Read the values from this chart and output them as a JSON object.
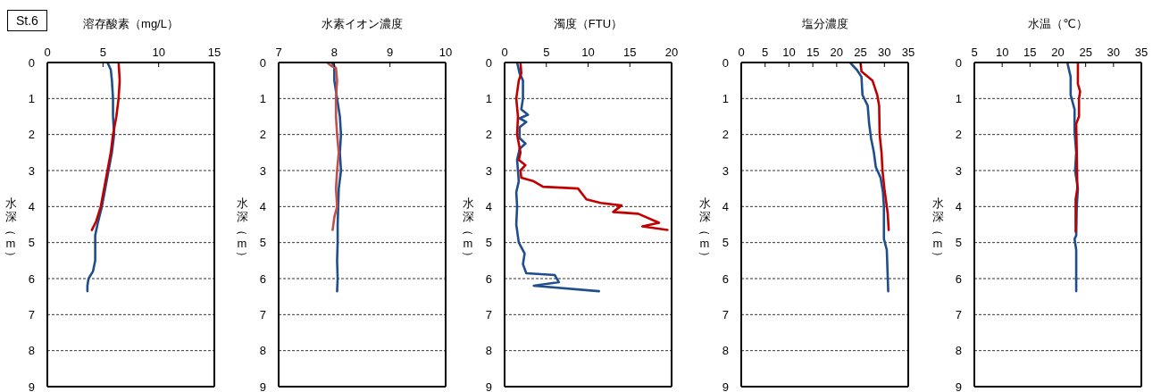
{
  "chart_data": [
    {
      "type": "line",
      "xlabel": "溶存酸素（mg/L）",
      "ylabel": "水深（m）",
      "annotations": [
        "St.6"
      ],
      "xlim": [
        0,
        15
      ],
      "xticks": [
        0,
        5,
        10,
        15
      ],
      "ylim": [
        9,
        0
      ],
      "yticks": [
        0,
        1,
        2,
        3,
        4,
        5,
        6,
        7,
        8,
        9
      ],
      "grid": "y",
      "series": [
        {
          "color": "#1f4e8c",
          "x": [
            5.4,
            5.7,
            5.8,
            5.9,
            5.9,
            6.0,
            5.8,
            5.5,
            5.2,
            4.9,
            4.5,
            4.3,
            4.3,
            4.1,
            3.7,
            3.6,
            3.6
          ],
          "values": [
            0,
            0.2,
            0.5,
            1,
            1.5,
            2,
            2.5,
            3,
            3.5,
            4,
            4.5,
            4.8,
            5.5,
            5.8,
            6,
            6.2,
            6.35
          ]
        },
        {
          "color": "#c00000",
          "x": [
            6.4,
            6.5,
            6.4,
            6.2,
            5.9,
            5.7,
            5.4,
            5.1,
            4.8,
            4.4,
            4.0
          ],
          "values": [
            0,
            0.5,
            1,
            1.5,
            2,
            2.5,
            3,
            3.5,
            4,
            4.4,
            4.65
          ]
        }
      ]
    },
    {
      "type": "line",
      "xlabel": "水素イオン濃度",
      "ylabel": "水深（m）",
      "xlim": [
        7,
        10
      ],
      "xticks": [
        7,
        8,
        9,
        10
      ],
      "ylim": [
        9,
        0
      ],
      "yticks": [
        0,
        1,
        2,
        3,
        4,
        5,
        6,
        7,
        8,
        9
      ],
      "grid": "y",
      "series": [
        {
          "color": "#1f4e8c",
          "x": [
            7.95,
            8.0,
            8.0,
            8.05,
            8.1,
            8.12,
            8.1,
            8.12,
            8.08,
            8.07,
            8.06,
            8.06,
            8.05,
            8.06,
            8.05
          ],
          "values": [
            0,
            0.1,
            0.5,
            1,
            1.5,
            2,
            2.5,
            3,
            3.5,
            4,
            4.5,
            5,
            5.5,
            6,
            6.35
          ]
        },
        {
          "color": "#c0504d",
          "x": [
            7.87,
            7.95,
            8.03,
            8.05,
            8.03,
            8.03,
            8.05,
            8.08,
            8.05,
            8.03,
            8.05,
            8.0,
            7.97
          ],
          "values": [
            0,
            0.1,
            0.15,
            0.5,
            1,
            1.5,
            2,
            2.5,
            3,
            3.5,
            4,
            4.3,
            4.65
          ]
        }
      ]
    },
    {
      "type": "line",
      "xlabel": "濁度（FTU）",
      "ylabel": "水深（m）",
      "xlim": [
        0,
        20
      ],
      "xticks": [
        0,
        5,
        10,
        15,
        20
      ],
      "ylim": [
        9,
        0
      ],
      "yticks": [
        0,
        1,
        2,
        3,
        4,
        5,
        6,
        7,
        8,
        9
      ],
      "grid": "y",
      "series": [
        {
          "color": "#1f4e8c",
          "x": [
            1.5,
            1.8,
            2.2,
            2.2,
            2.0,
            2.8,
            1.8,
            2.6,
            1.8,
            1.8,
            2.5,
            1.8,
            1.5,
            1.6,
            1.7,
            1.4,
            1.5,
            1.4,
            1.7,
            2.4,
            2.2,
            2.6,
            6.0,
            6.5,
            3.5,
            11.3
          ],
          "values": [
            0,
            0.3,
            0.5,
            1,
            1.3,
            1.45,
            1.55,
            1.65,
            1.8,
            2.1,
            2.25,
            2.4,
            2.7,
            3,
            3.3,
            3.6,
            4,
            4.5,
            5,
            5.3,
            5.6,
            5.85,
            5.9,
            6.1,
            6.2,
            6.35
          ]
        },
        {
          "color": "#c00000",
          "x": [
            1.9,
            2.0,
            1.7,
            1.4,
            1.6,
            1.5,
            1.9,
            1.7,
            2.5,
            1.9,
            2.0,
            3.5,
            4.6,
            8.8,
            9.8,
            11.5,
            14.0,
            13.0,
            16.0,
            18.5,
            16.5,
            19.5
          ],
          "values": [
            0,
            0.3,
            0.5,
            1,
            1.5,
            2,
            2.5,
            2.7,
            2.85,
            3.0,
            3.2,
            3.3,
            3.45,
            3.5,
            3.8,
            3.9,
            3.97,
            4.15,
            4.2,
            4.45,
            4.55,
            4.65
          ]
        }
      ]
    },
    {
      "type": "line",
      "xlabel": "塩分濃度",
      "ylabel": "水深（m）",
      "xlim": [
        0,
        35
      ],
      "xticks": [
        0,
        5,
        10,
        15,
        20,
        25,
        30,
        35
      ],
      "ylim": [
        9,
        0
      ],
      "yticks": [
        0,
        1,
        2,
        3,
        4,
        5,
        6,
        7,
        8,
        9
      ],
      "grid": "y",
      "series": [
        {
          "color": "#1f4e8c",
          "x": [
            22.8,
            24.2,
            25.2,
            25.4,
            26.5,
            26.8,
            27.2,
            27.8,
            28.2,
            29.2,
            29.7,
            29.9,
            29.9,
            30.5,
            30.8
          ],
          "values": [
            0,
            0.2,
            0.4,
            0.9,
            1.2,
            1.7,
            2.1,
            2.5,
            2.9,
            3.2,
            3.6,
            4,
            4.9,
            5.2,
            6.35
          ]
        },
        {
          "color": "#c00000",
          "x": [
            25.0,
            25.2,
            27.5,
            28.5,
            28.9,
            29.0,
            29.4,
            29.6,
            30.0,
            30.7,
            30.9
          ],
          "values": [
            0,
            0.25,
            0.5,
            0.9,
            1.2,
            2,
            2.5,
            3,
            3.5,
            4.2,
            4.65
          ]
        }
      ]
    },
    {
      "type": "line",
      "xlabel": "水温（℃）",
      "ylabel": "水深（m）",
      "xlim": [
        5,
        35
      ],
      "xticks": [
        5,
        10,
        15,
        20,
        25,
        30,
        35
      ],
      "ylim": [
        9,
        0
      ],
      "yticks": [
        0,
        1,
        2,
        3,
        4,
        5,
        6,
        7,
        8,
        9
      ],
      "grid": "y",
      "series": [
        {
          "color": "#1f4e8c",
          "x": [
            21.7,
            22.3,
            22.3,
            23.0,
            23.0,
            23.3,
            23.1,
            23.6,
            23.4,
            23.3,
            23.0,
            23.3,
            23.3
          ],
          "values": [
            0,
            0.4,
            0.9,
            1.3,
            1.9,
            2.5,
            3,
            3.5,
            4,
            4.8,
            4.9,
            5.2,
            6.35
          ]
        },
        {
          "color": "#c00000",
          "x": [
            23.6,
            23.6,
            24.0,
            23.8,
            23.8,
            23.3,
            23.4,
            23.5,
            23.2,
            23.2
          ],
          "values": [
            0,
            0.6,
            0.8,
            1.0,
            1.5,
            1.7,
            2.5,
            3.5,
            3.8,
            4.7
          ]
        }
      ]
    }
  ]
}
